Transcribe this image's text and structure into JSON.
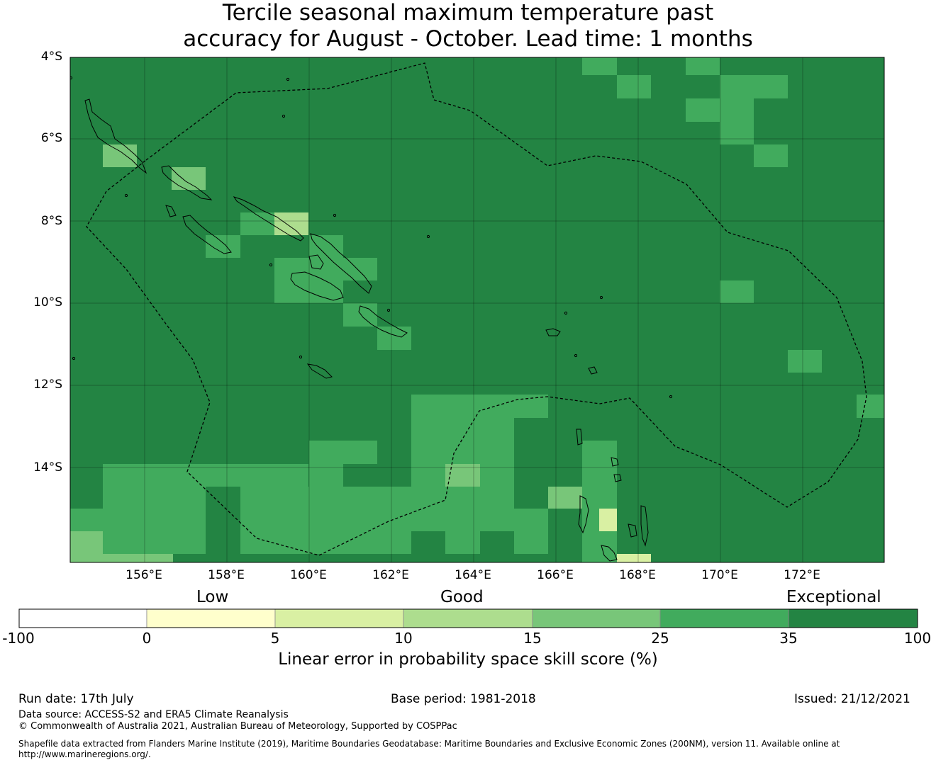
{
  "title_line1": "Tercile seasonal maximum temperature past",
  "title_line2": "accuracy for August - October. Lead time: 1 months",
  "map": {
    "lat_labels": [
      "4°S",
      "6°S",
      "8°S",
      "10°S",
      "12°S",
      "14°S"
    ],
    "lon_labels": [
      "156°E",
      "158°E",
      "160°E",
      "162°E",
      "164°E",
      "166°E",
      "168°E",
      "170°E",
      "172°E"
    ],
    "background_color": "#238443",
    "cell_colors": {
      "a": "#41ab5d",
      "b": "#78c679",
      "c": "#addd8e",
      "d": "#d9f0a3",
      "e": "#238443"
    },
    "colorbar_categories": [
      "Low",
      "Good",
      "Exceptional"
    ],
    "colorbar_ticks": [
      "-100",
      "0",
      "5",
      "10",
      "15",
      "25",
      "35",
      "100"
    ],
    "colorbar_colors": [
      "#ffffff",
      "#ffffcc",
      "#d9f0a3",
      "#addd8e",
      "#78c679",
      "#41ab5d",
      "#238443"
    ],
    "colorbar_title": "Linear error in probability space skill score (%)"
  },
  "footer": {
    "run_date": "Run date: 17th July",
    "base_period": "Base period: 1981-2018",
    "issued": "Issued: 21/12/2021",
    "data_source": "Data source: ACCESS-S2 and ERA5 Climate Reanalysis",
    "copyright": "© Commonwealth of Australia 2021, Australian Bureau of Meteorology, Supported by COSPPac",
    "shapefile_line1": "Shapefile data extracted from Flanders Marine Institute (2019), Maritime Boundaries Geodatabase: Maritime Boundaries and Exclusive Economic Zones (200NM), version 11. Available online at",
    "shapefile_line2": "http://www.marineregions.org/."
  }
}
